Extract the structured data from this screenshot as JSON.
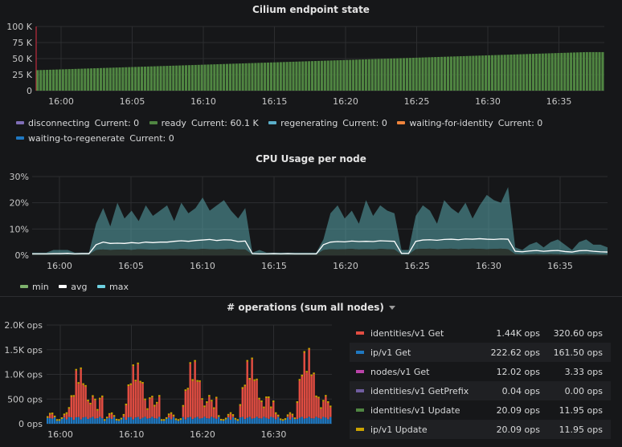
{
  "panels": {
    "endpoint_title": "Cilium endpoint state",
    "cpu_title": "CPU Usage per node",
    "ops_title": "# operations (sum all nodes)"
  },
  "endpoint_legend": [
    {
      "name": "disconnecting",
      "current": "Current: 0",
      "color": "#806eb7"
    },
    {
      "name": "ready",
      "current": "Current: 60.1 K",
      "color": "#508642"
    },
    {
      "name": "regenerating",
      "current": "Current: 0",
      "color": "#5bafc9"
    },
    {
      "name": "waiting-for-identity",
      "current": "Current: 0",
      "color": "#ef843c"
    },
    {
      "name": "waiting-to-regenerate",
      "current": "Current: 0",
      "color": "#1f78c1"
    }
  ],
  "cpu_legend": [
    {
      "name": "min",
      "color": "#7eb26d"
    },
    {
      "name": "avg",
      "color": "#ffffff"
    },
    {
      "name": "max",
      "color": "#6ed0e0"
    }
  ],
  "ops_table": [
    {
      "name": "identities/v1 Get",
      "v1": "1.44K ops",
      "v2": "320.60 ops",
      "color": "#e24d42"
    },
    {
      "name": "ip/v1 Get",
      "v1": "222.62 ops",
      "v2": "161.50 ops",
      "color": "#1f78c1"
    },
    {
      "name": "nodes/v1 Get",
      "v1": "12.02 ops",
      "v2": "3.33 ops",
      "color": "#ba43a9"
    },
    {
      "name": "identities/v1 GetPrefix",
      "v1": "0.04 ops",
      "v2": "0.00 ops",
      "color": "#705da0"
    },
    {
      "name": "identities/v1 Update",
      "v1": "20.09 ops",
      "v2": "11.95 ops",
      "color": "#508642"
    },
    {
      "name": "ip/v1 Update",
      "v1": "20.09 ops",
      "v2": "11.95 ops",
      "color": "#cca300"
    }
  ],
  "chart_data": [
    {
      "type": "bar",
      "title": "Cilium endpoint state",
      "y_ticks": [
        "100 K",
        "75 K",
        "50 K",
        "25 K",
        "0"
      ],
      "ylim": [
        0,
        100000
      ],
      "x_ticks": [
        "16:00",
        "16:05",
        "16:10",
        "16:15",
        "16:20",
        "16:25",
        "16:30",
        "16:35"
      ],
      "series": [
        {
          "name": "ready",
          "start": 32000,
          "end": 60100,
          "color": "#508642"
        }
      ]
    },
    {
      "type": "area",
      "title": "CPU Usage per node",
      "y_ticks": [
        "30%",
        "20%",
        "10%",
        "0%"
      ],
      "ylim": [
        0,
        30
      ],
      "x_ticks": [
        "16:00",
        "16:05",
        "16:10",
        "16:15",
        "16:20",
        "16:25",
        "16:30",
        "16:35"
      ],
      "series": [
        {
          "name": "max",
          "color": "#6ed0e0",
          "values": [
            1,
            1,
            1,
            2,
            2,
            2,
            1,
            1,
            1,
            12,
            18,
            11,
            20,
            14,
            17,
            13,
            19,
            15,
            17,
            19,
            13,
            20,
            16,
            18,
            22,
            17,
            19,
            21,
            17,
            14,
            18,
            1,
            2,
            1,
            1,
            1,
            1,
            1,
            1,
            1,
            1,
            6,
            16,
            19,
            14,
            17,
            12,
            21,
            15,
            19,
            17,
            16,
            2,
            2,
            15,
            19,
            17,
            12,
            21,
            18,
            16,
            20,
            14,
            19,
            23,
            21,
            20,
            26,
            3,
            2,
            4,
            5,
            3,
            5,
            6,
            4,
            2,
            5,
            6,
            4,
            4,
            3
          ]
        },
        {
          "name": "avg",
          "color": "#ffffff",
          "values": [
            0.5,
            0.5,
            0.5,
            0.6,
            0.6,
            0.7,
            0.5,
            0.6,
            0.6,
            4,
            5,
            4.5,
            4.6,
            4.5,
            4.8,
            4.6,
            5,
            4.8,
            5,
            5,
            5.3,
            5.5,
            5.3,
            5.6,
            5.8,
            6,
            5.6,
            5.9,
            5.8,
            5.2,
            5.4,
            0.6,
            0.5,
            0.5,
            0.6,
            0.5,
            0.6,
            0.5,
            0.5,
            0.5,
            0.5,
            4,
            5,
            5.2,
            5.1,
            5.4,
            5.2,
            5.3,
            5.2,
            5.5,
            5.4,
            5.3,
            0.7,
            0.7,
            5.3,
            5.8,
            5.9,
            5.7,
            6,
            6.1,
            5.9,
            6.2,
            6.1,
            6.3,
            6.1,
            6,
            6.2,
            6.1,
            1.5,
            1.3,
            1.6,
            1.8,
            1.5,
            1.7,
            1.8,
            1.4,
            1.2,
            1.7,
            1.8,
            1.5,
            1.3,
            1.2
          ]
        },
        {
          "name": "min",
          "color": "#7eb26d",
          "values": [
            0.2,
            0.2,
            0.2,
            0.2,
            0.2,
            0.2,
            0.2,
            0.2,
            0.2,
            2,
            2.2,
            2,
            2.1,
            2.2,
            2,
            2.3,
            2.2,
            2.1,
            2.2,
            2.3,
            2.2,
            2.4,
            2.3,
            2.2,
            2.4,
            2.3,
            2.2,
            2.3,
            2.4,
            2.2,
            2.2,
            0.2,
            0.2,
            0.2,
            0.2,
            0.2,
            0.2,
            0.2,
            0.2,
            0.2,
            0.2,
            2,
            2.3,
            2.2,
            2.3,
            2.4,
            2.2,
            2.3,
            2.2,
            2.4,
            2.3,
            2.2,
            0.2,
            0.2,
            2.3,
            2.4,
            2.5,
            2.3,
            2.4,
            2.5,
            2.3,
            2.4,
            2.5,
            2.4,
            2.3,
            2.4,
            2.5,
            2.3,
            0.4,
            0.3,
            0.4,
            0.5,
            0.4,
            0.5,
            0.4,
            0.3,
            0.3,
            0.4,
            0.5,
            0.4,
            0.3,
            0.3
          ]
        }
      ]
    },
    {
      "type": "bar",
      "title": "# operations (sum all nodes)",
      "y_ticks": [
        "2.0K ops",
        "1.5K ops",
        "1.0K ops",
        "500 ops",
        "0 ops"
      ],
      "ylim": [
        0,
        2000
      ],
      "x_ticks": [
        "16:00",
        "16:10",
        "16:20",
        "16:30"
      ],
      "peaks": [
        900,
        1150,
        1350,
        1250,
        1150,
        1300,
        1250,
        1350,
        1600,
        1550
      ]
    }
  ]
}
